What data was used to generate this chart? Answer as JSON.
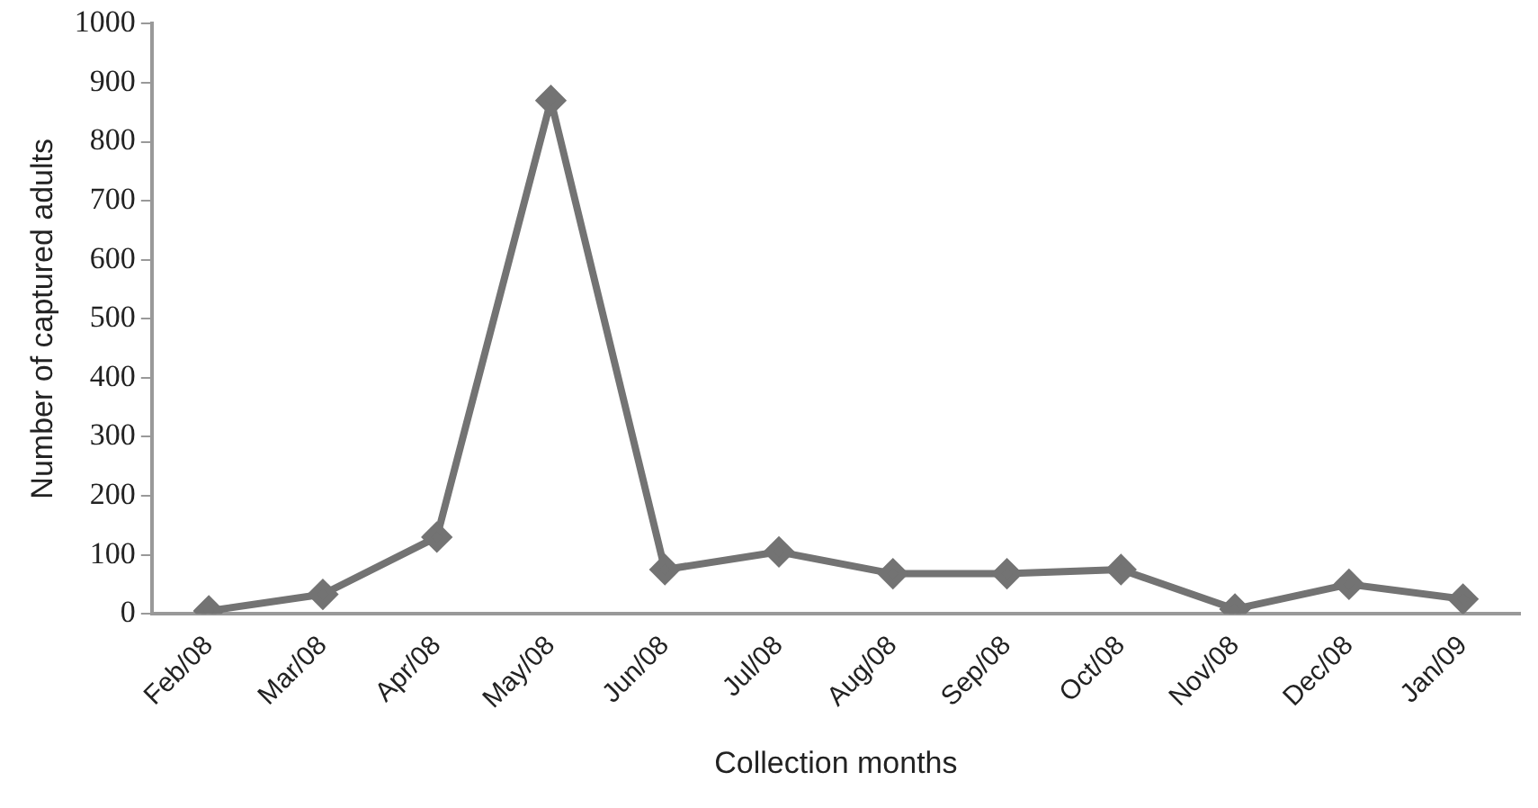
{
  "chart_data": {
    "type": "line",
    "xlabel": "Collection months",
    "ylabel": "Number of captured adults",
    "categories": [
      "Feb/08",
      "Mar/08",
      "Apr/08",
      "May/08",
      "Jun/08",
      "Jul/08",
      "Aug/08",
      "Sep/08",
      "Oct/08",
      "Nov/08",
      "Dec/08",
      "Jan/09"
    ],
    "series": [
      {
        "color": "#737373",
        "values": [
          5,
          33,
          130,
          870,
          75,
          105,
          68,
          68,
          75,
          8,
          50,
          25
        ]
      }
    ],
    "ylim": [
      0,
      1000
    ],
    "yticks": [
      0,
      100,
      200,
      300,
      400,
      500,
      600,
      700,
      800,
      900,
      1000
    ],
    "grid": false,
    "legend": false,
    "marker": "diamond",
    "line_style": "solid"
  }
}
